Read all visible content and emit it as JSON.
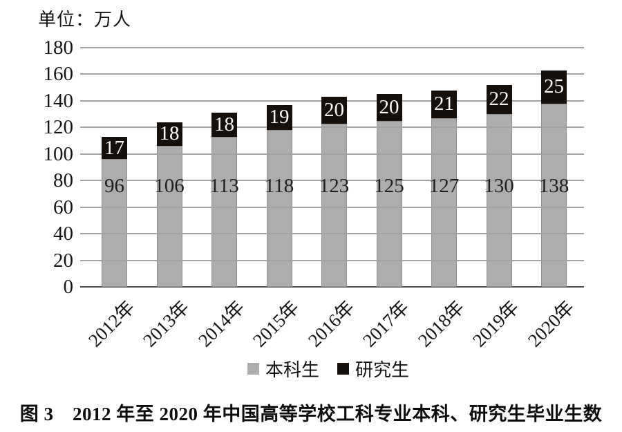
{
  "unit_label": "单位：万人",
  "caption": "图 3　2012 年至 2020 年中国高等学校工科专业本科、研究生毕业生数",
  "chart_data": {
    "type": "bar",
    "stacked": true,
    "title": "图 3　2012 年至 2020 年中国高等学校工科专业本科、研究生毕业生数",
    "unit": "万人",
    "categories": [
      "2012年",
      "2013年",
      "2014年",
      "2015年",
      "2016年",
      "2017年",
      "2018年",
      "2019年",
      "2020年"
    ],
    "series": [
      {
        "name": "本科生",
        "color": "#adadad",
        "label_color": "#1f1f1f",
        "values": [
          96,
          106,
          113,
          118,
          123,
          125,
          127,
          130,
          138
        ]
      },
      {
        "name": "研究生",
        "color": "#16100d",
        "label_color": "#fbfafa",
        "values": [
          17,
          18,
          18,
          19,
          20,
          20,
          21,
          22,
          25
        ]
      }
    ],
    "ylim": [
      0,
      180
    ],
    "ytick_step": 20,
    "grid": true,
    "legend_position": "bottom",
    "bar_labels_shown": true
  }
}
